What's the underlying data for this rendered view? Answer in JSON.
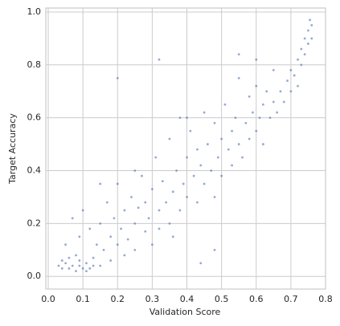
{
  "chart_data": {
    "type": "scatter",
    "x_label": "Validation Score",
    "y_label": "Target Accuracy",
    "color": "#4c72b0",
    "grid": true,
    "xlim": [
      -0.007,
      0.8
    ],
    "ylim": [
      -0.048,
      1.015
    ],
    "xticks": [
      {
        "value": 0,
        "label": "0.0"
      },
      0.1,
      0.2,
      0.3,
      0.4,
      0.5,
      0.6,
      0.7,
      0.8
    ],
    "yticks": [
      {
        "value": 0,
        "label": "0.0"
      },
      0.2,
      0.4,
      0.6,
      0.8,
      {
        "value": 1,
        "label": "1.0"
      }
    ],
    "x": [
      0.03,
      0.04,
      0.05,
      0.06,
      0.07,
      0.08,
      0.09,
      0.1,
      0.11,
      0.12,
      0.05,
      0.07,
      0.09,
      0.1,
      0.08,
      0.12,
      0.13,
      0.14,
      0.15,
      0.15,
      0.16,
      0.17,
      0.18,
      0.18,
      0.19,
      0.2,
      0.2,
      0.21,
      0.22,
      0.22,
      0.23,
      0.24,
      0.25,
      0.25,
      0.26,
      0.27,
      0.28,
      0.28,
      0.29,
      0.3,
      0.3,
      0.31,
      0.32,
      0.32,
      0.33,
      0.34,
      0.35,
      0.35,
      0.36,
      0.37,
      0.38,
      0.38,
      0.39,
      0.4,
      0.4,
      0.41,
      0.42,
      0.43,
      0.43,
      0.44,
      0.45,
      0.45,
      0.46,
      0.47,
      0.48,
      0.48,
      0.49,
      0.5,
      0.5,
      0.51,
      0.52,
      0.53,
      0.53,
      0.54,
      0.55,
      0.55,
      0.56,
      0.57,
      0.58,
      0.58,
      0.59,
      0.6,
      0.6,
      0.61,
      0.62,
      0.62,
      0.63,
      0.64,
      0.65,
      0.65,
      0.66,
      0.67,
      0.68,
      0.69,
      0.7,
      0.7,
      0.71,
      0.72,
      0.72,
      0.73,
      0.73,
      0.74,
      0.74,
      0.75,
      0.75,
      0.76,
      0.76,
      0.755,
      0.4,
      0.32,
      0.2,
      0.55,
      0.6,
      0.44,
      0.48,
      0.36,
      0.25,
      0.15,
      0.06,
      0.04,
      0.11,
      0.13,
      0.09
    ],
    "y": [
      0.04,
      0.03,
      0.05,
      0.03,
      0.04,
      0.02,
      0.04,
      0.03,
      0.05,
      0.03,
      0.12,
      0.22,
      0.15,
      0.25,
      0.08,
      0.18,
      0.07,
      0.12,
      0.04,
      0.2,
      0.1,
      0.28,
      0.15,
      0.06,
      0.22,
      0.12,
      0.35,
      0.18,
      0.08,
      0.25,
      0.14,
      0.3,
      0.2,
      0.1,
      0.26,
      0.38,
      0.17,
      0.28,
      0.22,
      0.12,
      0.33,
      0.45,
      0.25,
      0.18,
      0.36,
      0.28,
      0.52,
      0.2,
      0.32,
      0.4,
      0.25,
      0.6,
      0.35,
      0.3,
      0.45,
      0.55,
      0.38,
      0.28,
      0.48,
      0.42,
      0.62,
      0.35,
      0.5,
      0.4,
      0.58,
      0.3,
      0.45,
      0.52,
      0.38,
      0.65,
      0.48,
      0.55,
      0.42,
      0.6,
      0.5,
      0.75,
      0.45,
      0.58,
      0.52,
      0.68,
      0.62,
      0.55,
      0.72,
      0.6,
      0.65,
      0.5,
      0.7,
      0.6,
      0.66,
      0.78,
      0.62,
      0.7,
      0.66,
      0.74,
      0.7,
      0.78,
      0.76,
      0.72,
      0.82,
      0.8,
      0.86,
      0.84,
      0.9,
      0.88,
      0.93,
      0.95,
      0.9,
      0.97,
      0.6,
      0.82,
      0.75,
      0.84,
      0.82,
      0.05,
      0.1,
      0.15,
      0.4,
      0.35,
      0.07,
      0.06,
      0.02,
      0.04,
      0.06
    ]
  }
}
